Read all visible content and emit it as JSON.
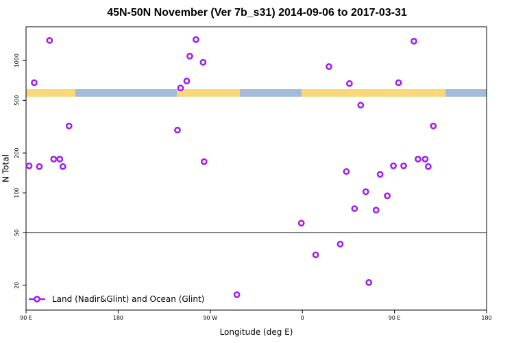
{
  "title": "45N-50N November (Ver 7b_s31)   2014-09-06 to 2017-03-31",
  "colors": {
    "marker": "#a020f0",
    "land": "#f8d878",
    "ocean": "#a4bcdc",
    "reference_line": "#000000"
  },
  "chart_data": {
    "type": "scatter",
    "title": "45N-50N November (Ver 7b_s31)   2014-09-06 to 2017-03-31",
    "xlabel": "Longitude (deg E)",
    "ylabel": "N Total",
    "x_ticks": [
      {
        "value": 90,
        "label": "90 E"
      },
      {
        "value": 180,
        "label": "180"
      },
      {
        "value": 270,
        "label": "90 W"
      },
      {
        "value": 360,
        "label": "0"
      },
      {
        "value": 450,
        "label": "90 E"
      },
      {
        "value": 540,
        "label": "180"
      }
    ],
    "xlim": [
      90,
      540
    ],
    "y_scale": "log",
    "ylim": [
      13,
      1800
    ],
    "y_ticks": [
      {
        "value": 20,
        "label": "20"
      },
      {
        "value": 50,
        "label": "50"
      },
      {
        "value": 100,
        "label": "100"
      },
      {
        "value": 200,
        "label": "200"
      },
      {
        "value": 500,
        "label": "500"
      },
      {
        "value": 1000,
        "label": "1000"
      }
    ],
    "reference_line": 50,
    "legend": {
      "position": "bottom-left",
      "label": "Land (Nadir&Glint) and Ocean (Glint)"
    },
    "series": [
      {
        "name": "Land (Nadir&Glint) and Ocean (Glint)",
        "points": [
          {
            "x": 93,
            "y": 160
          },
          {
            "x": 98,
            "y": 680
          },
          {
            "x": 103,
            "y": 158
          },
          {
            "x": 113,
            "y": 1420
          },
          {
            "x": 117,
            "y": 180
          },
          {
            "x": 123,
            "y": 180
          },
          {
            "x": 126,
            "y": 158
          },
          {
            "x": 132,
            "y": 320
          },
          {
            "x": 238,
            "y": 298
          },
          {
            "x": 241,
            "y": 620
          },
          {
            "x": 247,
            "y": 700
          },
          {
            "x": 250,
            "y": 1080
          },
          {
            "x": 256,
            "y": 1440
          },
          {
            "x": 263,
            "y": 970
          },
          {
            "x": 264,
            "y": 172
          },
          {
            "x": 296,
            "y": 17
          },
          {
            "x": 359,
            "y": 59
          },
          {
            "x": 373,
            "y": 34
          },
          {
            "x": 386,
            "y": 900
          },
          {
            "x": 397,
            "y": 41
          },
          {
            "x": 403,
            "y": 145
          },
          {
            "x": 406,
            "y": 670
          },
          {
            "x": 411,
            "y": 76
          },
          {
            "x": 417,
            "y": 460
          },
          {
            "x": 422,
            "y": 102
          },
          {
            "x": 425,
            "y": 21
          },
          {
            "x": 432,
            "y": 74
          },
          {
            "x": 436,
            "y": 138
          },
          {
            "x": 443,
            "y": 95
          },
          {
            "x": 449,
            "y": 160
          },
          {
            "x": 454,
            "y": 680
          },
          {
            "x": 459,
            "y": 160
          },
          {
            "x": 469,
            "y": 1400
          },
          {
            "x": 473,
            "y": 180
          },
          {
            "x": 480,
            "y": 180
          },
          {
            "x": 483,
            "y": 158
          },
          {
            "x": 488,
            "y": 320
          }
        ]
      }
    ]
  }
}
